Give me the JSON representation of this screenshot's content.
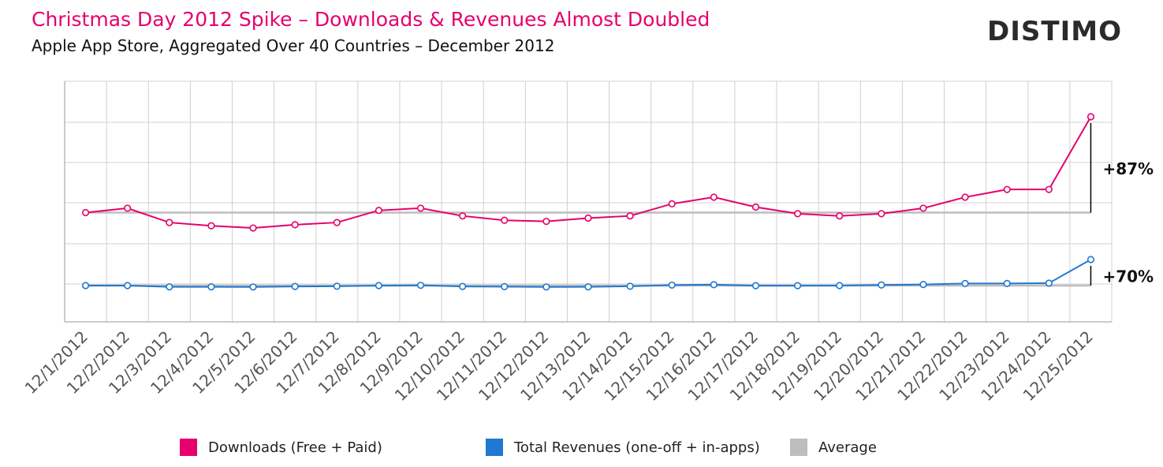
{
  "header": {
    "title": "Christmas Day 2012 Spike – Downloads & Revenues Almost Doubled",
    "subtitle": "Apple App Store, Aggregated Over 40 Countries – December 2012",
    "logo": "DISTIMO"
  },
  "colors": {
    "downloads": "#e5006d",
    "revenues": "#1f78d1",
    "average": "#bdbdbd",
    "grid": "#d0d0d0"
  },
  "legend": [
    {
      "label": "Downloads (Free + Paid)",
      "color": "#e5006d"
    },
    {
      "label": "Total Revenues (one-off + in-apps)",
      "color": "#1f78d1"
    },
    {
      "label": "Average",
      "color": "#bdbdbd"
    }
  ],
  "chart_data": {
    "type": "line",
    "categories": [
      "12/1/2012",
      "12/2/2012",
      "12/3/2012",
      "12/4/2012",
      "12/5/2012",
      "12/6/2012",
      "12/7/2012",
      "12/8/2012",
      "12/9/2012",
      "12/10/2012",
      "12/11/2012",
      "12/12/2012",
      "12/13/2012",
      "12/14/2012",
      "12/15/2012",
      "12/16/2012",
      "12/17/2012",
      "12/18/2012",
      "12/19/2012",
      "12/20/2012",
      "12/21/2012",
      "12/22/2012",
      "12/23/2012",
      "12/24/2012",
      "12/25/2012"
    ],
    "series": [
      {
        "name": "Downloads (Free + Paid)",
        "color": "#e5006d",
        "values": [
          100,
          104,
          91,
          88,
          86,
          89,
          91,
          102,
          104,
          97,
          93,
          92,
          95,
          97,
          108,
          114,
          105,
          99,
          97,
          99,
          104,
          114,
          121,
          121,
          187
        ],
        "average": 100,
        "annotation": "+87%"
      },
      {
        "name": "Total Revenues (one-off + in-apps)",
        "color": "#1f78d1",
        "values": [
          100,
          100,
          96.5,
          96.5,
          96.2,
          97.6,
          98.1,
          100,
          100.7,
          97.6,
          97.1,
          96.2,
          96.5,
          98.1,
          101.2,
          102.4,
          99.7,
          99.7,
          100,
          101.6,
          102.9,
          105.6,
          105.6,
          106.5,
          170
        ],
        "average": 100,
        "annotation": "+70%"
      }
    ],
    "ylabel": "",
    "xlabel": "",
    "grid": true
  }
}
